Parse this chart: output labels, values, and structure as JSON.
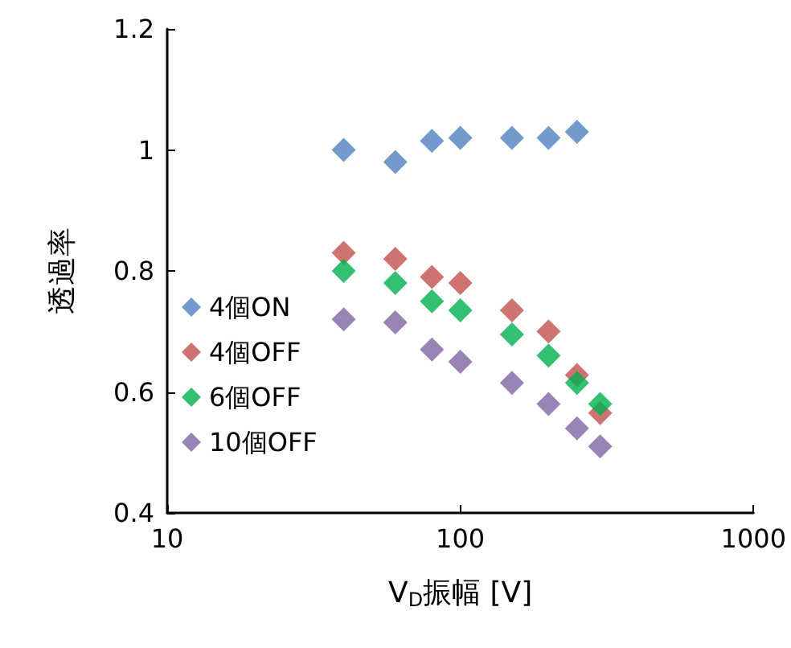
{
  "chart_data": {
    "type": "scatter",
    "xlabel": "V$_{D}$振幅 [V]",
    "ylabel": "透過率",
    "log": "x",
    "marker": "diamond",
    "grid": false,
    "legend": "left",
    "xlim": [
      10,
      1000
    ],
    "xticks": [
      10,
      100,
      1000
    ],
    "ylim": [
      0.4,
      1.2
    ],
    "yticks": [
      0.4,
      0.6,
      0.8,
      1,
      1.2
    ],
    "series": [
      {
        "name": "4個ON",
        "color": "#4f81bd",
        "x": [
          40,
          60,
          80,
          100,
          150,
          200,
          250
        ],
        "values": [
          1.0,
          0.98,
          1.015,
          1.02,
          1.02,
          1.02,
          1.03
        ]
      },
      {
        "name": "4個OFF",
        "color": "#c0504d",
        "x": [
          40,
          60,
          80,
          100,
          150,
          200,
          250,
          300
        ],
        "values": [
          0.83,
          0.82,
          0.79,
          0.78,
          0.735,
          0.7,
          0.628,
          0.565
        ]
      },
      {
        "name": "6個OFF",
        "color": "#00b050",
        "x": [
          40,
          60,
          80,
          100,
          150,
          200,
          250,
          300
        ],
        "values": [
          0.8,
          0.78,
          0.75,
          0.735,
          0.695,
          0.66,
          0.615,
          0.58
        ]
      },
      {
        "name": "10個OFF",
        "color": "#8064a2",
        "x": [
          40,
          60,
          80,
          100,
          150,
          200,
          250,
          300
        ],
        "values": [
          0.72,
          0.715,
          0.67,
          0.65,
          0.615,
          0.58,
          0.54,
          0.51
        ]
      }
    ]
  }
}
